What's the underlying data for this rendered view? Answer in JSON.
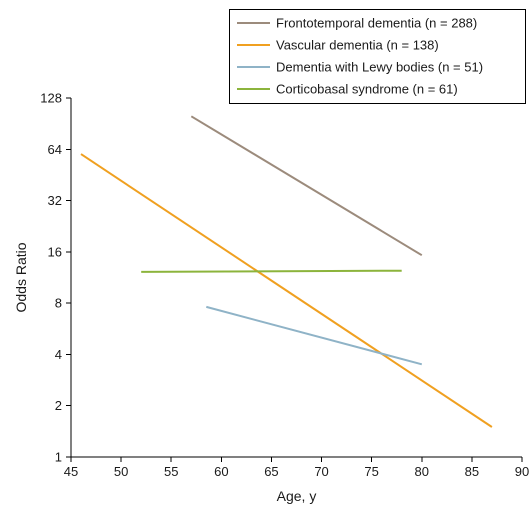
{
  "chart_data": {
    "type": "line",
    "xlabel": "Age, y",
    "ylabel": "Odds Ratio",
    "xlim": [
      45,
      90
    ],
    "ylim": [
      1,
      128
    ],
    "yscale": "log2",
    "x_ticks": [
      45,
      50,
      55,
      60,
      65,
      70,
      75,
      80,
      85,
      90
    ],
    "y_ticks": [
      1,
      2,
      4,
      8,
      16,
      32,
      64,
      128
    ],
    "legend_position": "top-right",
    "series": [
      {
        "name": "Frontotemporal dementia (n = 288)",
        "color": "#9c8b7c",
        "x": [
          57,
          80
        ],
        "y": [
          100,
          15.3
        ]
      },
      {
        "name": "Vascular dementia (n = 138)",
        "color": "#f0a020",
        "x": [
          46,
          87
        ],
        "y": [
          60,
          1.5
        ]
      },
      {
        "name": "Dementia with Lewy bodies (n = 51)",
        "color": "#8fb3c7",
        "x": [
          58.5,
          80
        ],
        "y": [
          7.6,
          3.5
        ]
      },
      {
        "name": "Corticobasal syndrome (n = 61)",
        "color": "#8cb43c",
        "x": [
          52,
          78
        ],
        "y": [
          12.2,
          12.4
        ]
      }
    ]
  }
}
